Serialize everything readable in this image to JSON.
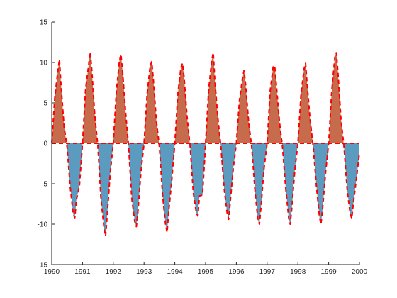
{
  "chart_data": {
    "type": "area",
    "title": "",
    "xlabel": "",
    "ylabel": "",
    "xlim": [
      1990,
      2000
    ],
    "ylim": [
      -15,
      15
    ],
    "xticks": [
      1990,
      1991,
      1992,
      1993,
      1994,
      1995,
      1996,
      1997,
      1998,
      1999,
      2000
    ],
    "yticks": [
      -15,
      -10,
      -5,
      0,
      5,
      10,
      15
    ],
    "grid": false,
    "legend": "none",
    "colors": {
      "positive_fill": "#c66b4c",
      "negative_fill": "#5a9bbf",
      "line": "#ff0000",
      "axis": "#262626"
    },
    "line_style": "dashed",
    "series": [
      {
        "x": [
          1990.0,
          1990.1,
          1990.2,
          1990.25,
          1990.3,
          1990.4,
          1990.5,
          1990.6,
          1990.7,
          1990.75,
          1990.8,
          1990.9,
          1991.0,
          1991.1,
          1991.2,
          1991.25,
          1991.3,
          1991.4,
          1991.5,
          1991.6,
          1991.7,
          1991.75,
          1991.8,
          1991.9,
          1992.0,
          1992.1,
          1992.2,
          1992.25,
          1992.3,
          1992.4,
          1992.5,
          1992.6,
          1992.7,
          1992.75,
          1992.8,
          1992.9,
          1993.0,
          1993.1,
          1993.2,
          1993.25,
          1993.3,
          1993.4,
          1993.5,
          1993.6,
          1993.7,
          1993.75,
          1993.8,
          1993.9,
          1994.0,
          1994.1,
          1994.2,
          1994.25,
          1994.3,
          1994.4,
          1994.5,
          1994.6,
          1994.7,
          1994.75,
          1994.8,
          1994.9,
          1995.0,
          1995.1,
          1995.2,
          1995.25,
          1995.3,
          1995.4,
          1995.5,
          1995.6,
          1995.7,
          1995.75,
          1995.8,
          1995.9,
          1996.0,
          1996.1,
          1996.2,
          1996.25,
          1996.3,
          1996.4,
          1996.5,
          1996.6,
          1996.7,
          1996.75,
          1996.8,
          1996.9,
          1997.0,
          1997.1,
          1997.2,
          1997.25,
          1997.3,
          1997.4,
          1997.5,
          1997.6,
          1997.7,
          1997.75,
          1997.8,
          1997.9,
          1998.0,
          1998.1,
          1998.2,
          1998.25,
          1998.3,
          1998.4,
          1998.5,
          1998.6,
          1998.7,
          1998.75,
          1998.8,
          1998.9,
          1999.0,
          1999.1,
          1999.2,
          1999.25,
          1999.3,
          1999.4,
          1999.5,
          1999.6,
          1999.7,
          1999.75,
          1999.8,
          1999.9,
          2000.0
        ],
        "y": [
          0.0,
          5.7,
          9.0,
          10.4,
          7.3,
          2.1,
          -0.5,
          -5.4,
          -8.8,
          -9.2,
          -7.0,
          -5.3,
          0.0,
          6.7,
          9.7,
          11.3,
          9.2,
          3.4,
          -0.4,
          -6.9,
          -10.5,
          -11.5,
          -9.0,
          -3.7,
          0.0,
          6.4,
          10.2,
          11.0,
          9.0,
          3.9,
          -0.5,
          -6.8,
          -9.7,
          -10.3,
          -8.5,
          -3.5,
          0.0,
          6.1,
          9.6,
          10.1,
          8.0,
          2.8,
          -0.5,
          -6.3,
          -10.1,
          -11.0,
          -8.5,
          -4.6,
          0.0,
          6.2,
          9.4,
          9.9,
          8.2,
          3.2,
          -0.5,
          -6.1,
          -8.6,
          -9.0,
          -6.5,
          -6.4,
          0.0,
          6.6,
          10.3,
          11.2,
          7.8,
          3.1,
          -0.5,
          -5.5,
          -8.6,
          -9.4,
          -7.3,
          -3.1,
          0.0,
          5.3,
          8.1,
          9.0,
          7.3,
          2.6,
          -0.5,
          -5.6,
          -9.5,
          -10.0,
          -7.9,
          -3.1,
          0.0,
          6.5,
          9.6,
          9.4,
          7.2,
          2.7,
          -0.5,
          -5.4,
          -9.2,
          -10.0,
          -8.1,
          -3.3,
          0.0,
          6.0,
          9.2,
          9.9,
          7.3,
          2.8,
          -0.5,
          -5.2,
          -9.1,
          -10.0,
          -8.2,
          -3.6,
          0.0,
          6.5,
          10.6,
          11.2,
          8.9,
          3.0,
          -0.5,
          -5.7,
          -8.7,
          -9.3,
          -7.5,
          -4.4,
          -1.2
        ]
      }
    ]
  }
}
